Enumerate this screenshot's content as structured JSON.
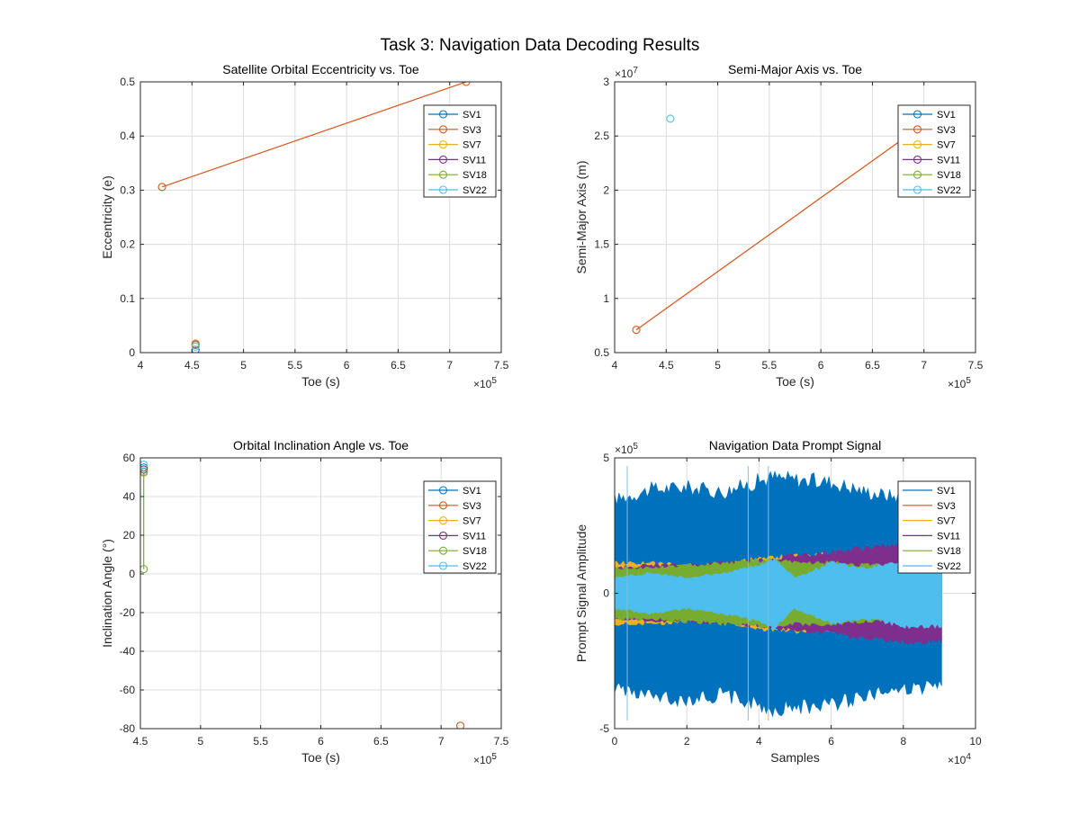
{
  "figure_title": "Task 3: Navigation Data Decoding Results",
  "legend_entries": [
    "SV1",
    "SV3",
    "SV7",
    "SV11",
    "SV18",
    "SV22"
  ],
  "series_colors": [
    "#0072BD",
    "#D95319",
    "#EDB120",
    "#7E2F8E",
    "#77AC30",
    "#4DBEEE"
  ],
  "chart_data": [
    {
      "type": "line",
      "title": "Satellite Orbital Eccentricity vs. Toe",
      "xlabel": "Toe (s)",
      "ylabel": "Eccentricity (e)",
      "xlim": [
        400000,
        750000
      ],
      "ylim": [
        0,
        0.5
      ],
      "xticks": [
        400000,
        450000,
        500000,
        550000,
        600000,
        650000,
        700000,
        750000
      ],
      "xtick_labels": [
        "4",
        "4.5",
        "5",
        "5.5",
        "6",
        "6.5",
        "7",
        "7.5"
      ],
      "x_multiplier": "10^5",
      "yticks": [
        0,
        0.1,
        0.2,
        0.3,
        0.4,
        0.5
      ],
      "ytick_labels": [
        "0",
        "0.1",
        "0.2",
        "0.3",
        "0.4",
        "0.5"
      ],
      "y_multiplier": "",
      "grid": true,
      "legend": "top-right",
      "series": [
        {
          "name": "SV1",
          "x": [
            453500
          ],
          "y": [
            0.005
          ]
        },
        {
          "name": "SV3",
          "x": [
            421000,
            716000
          ],
          "y": [
            0.306,
            0.5
          ]
        },
        {
          "name": "SV7",
          "x": [
            453500
          ],
          "y": [
            0.017
          ]
        },
        {
          "name": "SV11",
          "x": [
            453500
          ],
          "y": [
            0.015
          ]
        },
        {
          "name": "SV18",
          "x": [
            453500
          ],
          "y": [
            0.014
          ]
        },
        {
          "name": "SV22",
          "x": [
            453500
          ],
          "y": [
            0.011
          ]
        }
      ]
    },
    {
      "type": "line",
      "title": "Semi-Major Axis vs. Toe",
      "xlabel": "Toe (s)",
      "ylabel": "Semi-Major Axis (m)",
      "xlim": [
        400000,
        750000
      ],
      "ylim": [
        5000000,
        30000000
      ],
      "xticks": [
        400000,
        450000,
        500000,
        550000,
        600000,
        650000,
        700000,
        750000
      ],
      "xtick_labels": [
        "4",
        "4.5",
        "5",
        "5.5",
        "6",
        "6.5",
        "7",
        "7.5"
      ],
      "x_multiplier": "10^5",
      "yticks": [
        5000000,
        10000000,
        15000000,
        20000000,
        25000000,
        30000000
      ],
      "ytick_labels": [
        "0.5",
        "1",
        "1.5",
        "2",
        "2.5",
        "3"
      ],
      "y_multiplier": "10^7",
      "grid": true,
      "legend": "top-right",
      "series": [
        {
          "name": "SV1",
          "x": [],
          "y": []
        },
        {
          "name": "SV3",
          "x": [
            421000,
            716000
          ],
          "y": [
            7100000,
            27200000
          ]
        },
        {
          "name": "SV7",
          "x": [],
          "y": []
        },
        {
          "name": "SV11",
          "x": [],
          "y": []
        },
        {
          "name": "SV18",
          "x": [],
          "y": []
        },
        {
          "name": "SV22",
          "x": [
            454000
          ],
          "y": [
            26600000
          ]
        }
      ]
    },
    {
      "type": "line",
      "title": "Orbital Inclination Angle vs. Toe",
      "xlabel": "Toe (s)",
      "ylabel": "Inclination Angle (°)",
      "xlim": [
        450000,
        750000
      ],
      "ylim": [
        -80,
        60
      ],
      "xticks": [
        450000,
        500000,
        550000,
        600000,
        650000,
        700000,
        750000
      ],
      "xtick_labels": [
        "4.5",
        "5",
        "5.5",
        "6",
        "6.5",
        "7",
        "7.5"
      ],
      "x_multiplier": "10^5",
      "yticks": [
        -80,
        -60,
        -40,
        -20,
        0,
        20,
        40,
        60
      ],
      "ytick_labels": [
        "-80",
        "-60",
        "-40",
        "-20",
        "0",
        "20",
        "40",
        "60"
      ],
      "y_multiplier": "",
      "grid": true,
      "legend": "top-right",
      "series": [
        {
          "name": "SV1",
          "x": [
            452800
          ],
          "y": [
            55
          ]
        },
        {
          "name": "SV3",
          "x": [
            716000
          ],
          "y": [
            -78.5
          ]
        },
        {
          "name": "SV7",
          "x": [
            452800
          ],
          "y": [
            53
          ]
        },
        {
          "name": "SV11",
          "x": [
            452800
          ],
          "y": [
            54
          ]
        },
        {
          "name": "SV18",
          "x": [
            452800,
            452800
          ],
          "y": [
            52.5,
            2.5
          ]
        },
        {
          "name": "SV22",
          "x": [
            452800
          ],
          "y": [
            56.5
          ]
        }
      ]
    },
    {
      "type": "area",
      "title": "Navigation Data Prompt Signal",
      "xlabel": "Samples",
      "ylabel": "Prompt Signal Amplitude",
      "xlim": [
        0,
        100000
      ],
      "ylim": [
        -500000,
        500000
      ],
      "xticks": [
        0,
        20000,
        40000,
        60000,
        80000,
        100000
      ],
      "xtick_labels": [
        "0",
        "2",
        "4",
        "6",
        "8",
        "10"
      ],
      "x_multiplier": "10^4",
      "yticks": [
        -500000,
        0,
        500000
      ],
      "ytick_labels": [
        "-5",
        "0",
        "5"
      ],
      "y_multiplier": "10^5",
      "grid": true,
      "legend": "top-right",
      "samples": 91000,
      "series": [
        {
          "name": "SV1",
          "x": [
            0,
            10000,
            20000,
            30000,
            40000,
            44000,
            50000,
            60000,
            70000,
            80000,
            91000
          ],
          "envelope": [
            370000,
            410000,
            420000,
            400000,
            445000,
            460000,
            450000,
            440000,
            400000,
            380000,
            370000
          ]
        },
        {
          "name": "SV3",
          "x": [],
          "envelope": []
        },
        {
          "name": "SV7",
          "x": [
            0,
            10000,
            20000,
            30000,
            40000,
            44000,
            50000,
            60000,
            70000,
            80000,
            91000
          ],
          "envelope": [
            120000,
            120000,
            110000,
            110000,
            140000,
            140000,
            150000,
            150000,
            140000,
            130000,
            120000
          ]
        },
        {
          "name": "SV11",
          "x": [
            0,
            10000,
            20000,
            30000,
            40000,
            44000,
            50000,
            60000,
            70000,
            80000,
            91000
          ],
          "envelope": [
            100000,
            110000,
            110000,
            120000,
            130000,
            135000,
            150000,
            160000,
            180000,
            190000,
            190000
          ]
        },
        {
          "name": "SV18",
          "x": [
            0,
            10000,
            20000,
            30000,
            40000,
            44000,
            50000,
            60000,
            70000,
            80000,
            91000
          ],
          "envelope": [
            100000,
            100000,
            110000,
            120000,
            130000,
            130000,
            120000,
            120000,
            110000,
            110000,
            110000
          ]
        },
        {
          "name": "SV22",
          "x": [
            0,
            10000,
            20000,
            30000,
            40000,
            44000,
            50000,
            60000,
            70000,
            80000,
            91000
          ],
          "envelope": [
            60000,
            80000,
            60000,
            80000,
            110000,
            140000,
            60000,
            120000,
            100000,
            130000,
            130000
          ]
        }
      ]
    }
  ]
}
